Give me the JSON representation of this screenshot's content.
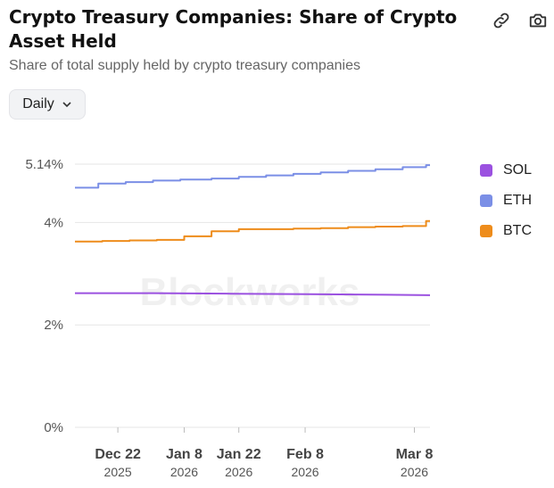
{
  "header": {
    "title": "Crypto Treasury Companies: Share of Crypto Asset Held",
    "subtitle": "Share of total supply held by crypto treasury companies"
  },
  "toolbar": {
    "period_label": "Daily",
    "link_icon": "link-icon",
    "camera_icon": "camera-icon"
  },
  "watermark": "Blockworks",
  "colors": {
    "sol": "#9b51e0",
    "eth": "#7b8fe6",
    "btc": "#ee8c1b",
    "grid": "#e6e6e6",
    "axis_text": "#555555"
  },
  "chart_data": {
    "type": "line",
    "title": "Crypto Treasury Companies: Share of Crypto Asset Held",
    "subtitle": "Share of total supply held by crypto treasury companies",
    "xlabel": "",
    "ylabel": "",
    "ylim": [
      0,
      5.14
    ],
    "yticks": [
      {
        "value": 0,
        "label": "0%"
      },
      {
        "value": 2,
        "label": "2%"
      },
      {
        "value": 4,
        "label": "4%"
      },
      {
        "value": 5.14,
        "label": "5.14%"
      }
    ],
    "x_range": [
      0,
      91
    ],
    "xticks": [
      {
        "x": 11,
        "label": "Dec 22",
        "sublabel": "2025"
      },
      {
        "x": 28,
        "label": "Jan 8",
        "sublabel": "2026"
      },
      {
        "x": 42,
        "label": "Jan 22",
        "sublabel": "2026"
      },
      {
        "x": 59,
        "label": "Feb 8",
        "sublabel": "2026"
      },
      {
        "x": 87,
        "label": "Mar 8",
        "sublabel": "2026"
      }
    ],
    "grid": true,
    "legend_position": "right",
    "series": [
      {
        "name": "SOL",
        "color": "#9b51e0",
        "points": [
          [
            0,
            2.62
          ],
          [
            20,
            2.62
          ],
          [
            40,
            2.61
          ],
          [
            60,
            2.6
          ],
          [
            80,
            2.59
          ],
          [
            91,
            2.58
          ]
        ]
      },
      {
        "name": "ETH",
        "color": "#7b8fe6",
        "points": [
          [
            0,
            4.68
          ],
          [
            6,
            4.68
          ],
          [
            6,
            4.76
          ],
          [
            13,
            4.76
          ],
          [
            13,
            4.79
          ],
          [
            20,
            4.79
          ],
          [
            20,
            4.82
          ],
          [
            27,
            4.82
          ],
          [
            27,
            4.84
          ],
          [
            35,
            4.84
          ],
          [
            35,
            4.86
          ],
          [
            42,
            4.86
          ],
          [
            42,
            4.89
          ],
          [
            49,
            4.89
          ],
          [
            49,
            4.92
          ],
          [
            56,
            4.92
          ],
          [
            56,
            4.95
          ],
          [
            63,
            4.95
          ],
          [
            63,
            4.98
          ],
          [
            70,
            4.98
          ],
          [
            70,
            5.01
          ],
          [
            77,
            5.01
          ],
          [
            77,
            5.04
          ],
          [
            84,
            5.04
          ],
          [
            84,
            5.08
          ],
          [
            90,
            5.08
          ],
          [
            90,
            5.12
          ],
          [
            91,
            5.12
          ]
        ]
      },
      {
        "name": "BTC",
        "color": "#ee8c1b",
        "points": [
          [
            0,
            3.63
          ],
          [
            7,
            3.63
          ],
          [
            7,
            3.64
          ],
          [
            14,
            3.64
          ],
          [
            14,
            3.65
          ],
          [
            21,
            3.65
          ],
          [
            21,
            3.66
          ],
          [
            28,
            3.66
          ],
          [
            28,
            3.73
          ],
          [
            35,
            3.73
          ],
          [
            35,
            3.83
          ],
          [
            42,
            3.83
          ],
          [
            42,
            3.87
          ],
          [
            56,
            3.87
          ],
          [
            56,
            3.88
          ],
          [
            63,
            3.88
          ],
          [
            63,
            3.89
          ],
          [
            70,
            3.89
          ],
          [
            70,
            3.91
          ],
          [
            77,
            3.91
          ],
          [
            77,
            3.92
          ],
          [
            84,
            3.92
          ],
          [
            84,
            3.93
          ],
          [
            90,
            3.93
          ],
          [
            90,
            4.03
          ],
          [
            91,
            4.03
          ]
        ]
      }
    ]
  }
}
